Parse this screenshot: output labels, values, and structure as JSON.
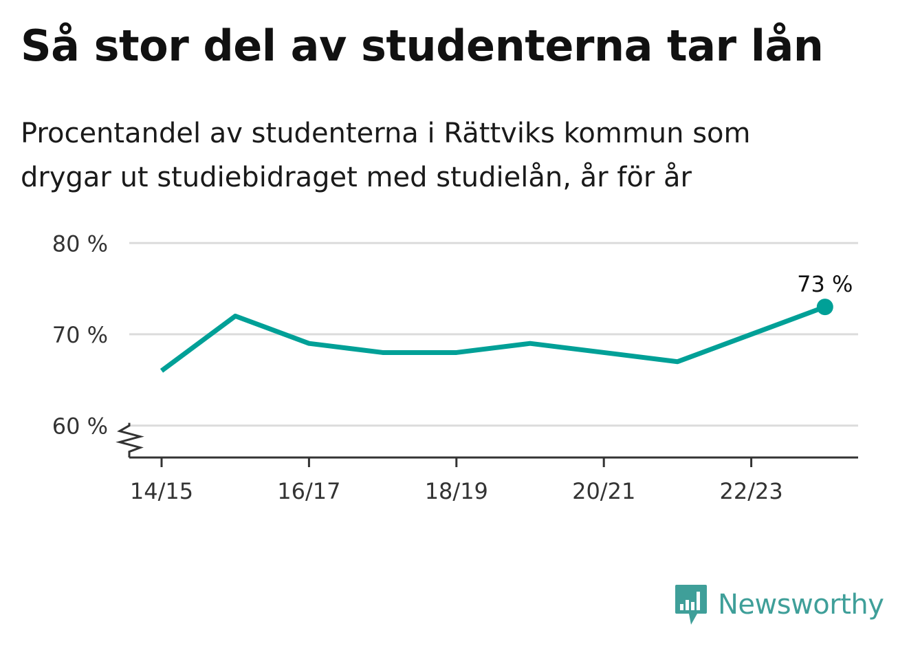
{
  "title": "Så stor del av studenterna tar lån",
  "subtitle": "Procentandel av studenterna i Rättviks kommun som drygar ut studiebidraget med studielån, år för år",
  "chart_data": {
    "type": "line",
    "x": [
      "14/15",
      "15/16",
      "16/17",
      "17/18",
      "18/19",
      "19/20",
      "20/21",
      "21/22",
      "22/23",
      "23/24"
    ],
    "xticks": [
      "14/15",
      "16/17",
      "18/19",
      "20/21",
      "22/23"
    ],
    "series": [
      {
        "values": [
          66,
          72,
          69,
          68,
          68,
          69,
          68,
          67,
          70,
          73
        ]
      }
    ],
    "yticks": [
      60,
      70,
      80
    ],
    "ytick_labels": [
      "60 %",
      "70 %",
      "80 %"
    ],
    "ylim": [
      56.5,
      81
    ],
    "axis_break": true,
    "grid": true,
    "last_point_label": "73 %",
    "line_color": "#00a097"
  },
  "brand": {
    "name": "Newsworthy",
    "icon": "bar-chart-speech-bubble-icon",
    "color": "#3f9f99"
  }
}
